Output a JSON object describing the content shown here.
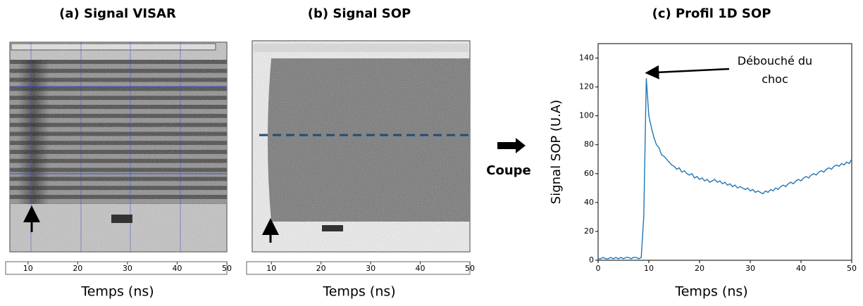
{
  "chart_data": [
    {
      "type": "image",
      "title": "(a) Signal VISAR",
      "xlabel": "Temps (ns)",
      "xlim": [
        5.5,
        50
      ],
      "xticks": [
        10,
        20,
        30,
        40,
        50
      ]
    },
    {
      "type": "image",
      "title": "(b) Signal SOP",
      "xlabel": "Temps (ns)",
      "xlim": [
        5,
        50
      ],
      "xticks": [
        10,
        20,
        30,
        40,
        50
      ]
    },
    {
      "type": "line",
      "title": "(c) Profil 1D SOP",
      "xlabel": "Temps (ns)",
      "ylabel": "Signal SOP (U.A)",
      "annotation": "Débouché du choc",
      "color": "#1f77b4",
      "x": [
        0,
        0.5,
        1,
        1.5,
        2,
        2.5,
        3,
        3.5,
        4,
        4.5,
        5,
        5.5,
        6,
        6.5,
        7,
        7.5,
        8,
        8.5,
        9,
        9.5,
        10,
        10.5,
        11,
        11.5,
        12,
        12.5,
        13,
        13.5,
        14,
        14.5,
        15,
        15.5,
        16,
        16.5,
        17,
        17.5,
        18,
        18.5,
        19,
        19.5,
        20,
        20.5,
        21,
        21.5,
        22,
        22.5,
        23,
        23.5,
        24,
        24.5,
        25,
        25.5,
        26,
        26.5,
        27,
        27.5,
        28,
        28.5,
        29,
        29.5,
        30,
        30.5,
        31,
        31.5,
        32,
        32.5,
        33,
        33.5,
        34,
        34.5,
        35,
        35.5,
        36,
        36.5,
        37,
        37.5,
        38,
        38.5,
        39,
        39.5,
        40,
        40.5,
        41,
        41.5,
        42,
        42.5,
        43,
        43.5,
        44,
        44.5,
        45,
        45.5,
        46,
        46.5,
        47,
        47.5,
        48,
        48.5,
        49,
        49.5,
        50
      ],
      "values": [
        1,
        1,
        2,
        1,
        1,
        2,
        1,
        2,
        1,
        2,
        1,
        2,
        2,
        1,
        2,
        2,
        1,
        2,
        30,
        126,
        100,
        92,
        85,
        80,
        78,
        73,
        72,
        70,
        68,
        66,
        65,
        63,
        64,
        61,
        62,
        60,
        59,
        60,
        57,
        58,
        56,
        57,
        55,
        56,
        54,
        55,
        56,
        54,
        55,
        53,
        54,
        52,
        53,
        51,
        52,
        50,
        51,
        50,
        49,
        50,
        48,
        49,
        47,
        48,
        47,
        46,
        48,
        47,
        49,
        48,
        50,
        49,
        51,
        52,
        51,
        53,
        54,
        53,
        55,
        56,
        55,
        57,
        58,
        57,
        59,
        60,
        59,
        61,
        62,
        61,
        63,
        64,
        63,
        65,
        66,
        65,
        67,
        66,
        68,
        67,
        70
      ],
      "xlim": [
        0,
        50
      ],
      "ylim": [
        0,
        150
      ],
      "xticks": [
        0,
        10,
        20,
        30,
        40,
        50
      ],
      "yticks": [
        0,
        20,
        40,
        60,
        80,
        100,
        120,
        140
      ]
    }
  ],
  "arrow_label": "Coupe"
}
